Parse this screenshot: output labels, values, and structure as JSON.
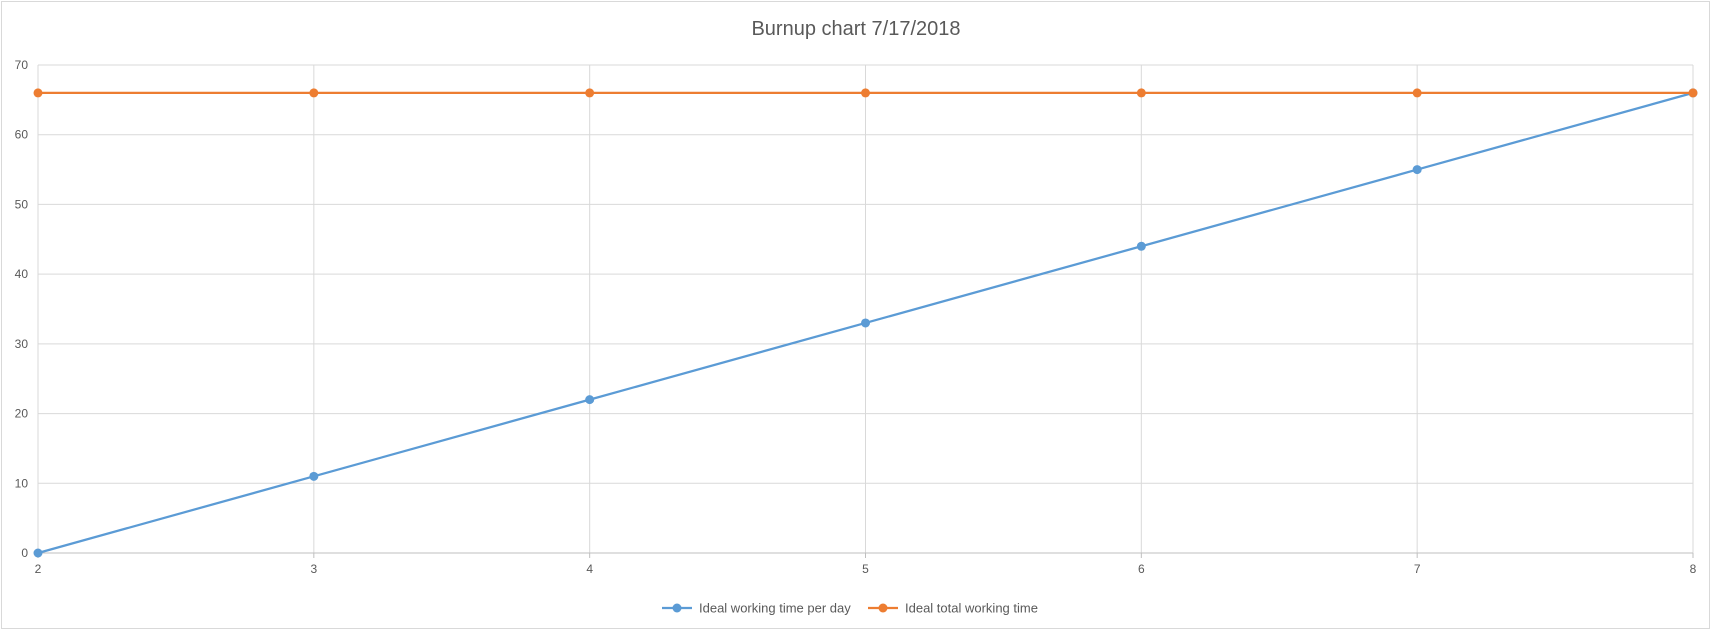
{
  "chart_data": {
    "type": "line",
    "title": "Burnup chart 7/17/2018",
    "xlabel": "",
    "ylabel": "",
    "x": [
      2,
      3,
      4,
      5,
      6,
      7,
      8
    ],
    "x_ticks": [
      "2",
      "3",
      "4",
      "5",
      "6",
      "7",
      "8"
    ],
    "xlim": [
      2,
      8
    ],
    "ylim": [
      0,
      70
    ],
    "y_ticks": [
      "0",
      "10",
      "20",
      "30",
      "40",
      "50",
      "60",
      "70"
    ],
    "y_tick_values": [
      0,
      10,
      20,
      30,
      40,
      50,
      60,
      70
    ],
    "grid": true,
    "legend_position": "bottom",
    "series": [
      {
        "name": "Ideal working time per day",
        "color": "#5b9bd5",
        "values": [
          0,
          11,
          22,
          33,
          44,
          55,
          66
        ]
      },
      {
        "name": "Ideal total working time",
        "color": "#ed7d31",
        "values": [
          66,
          66,
          66,
          66,
          66,
          66,
          66
        ]
      }
    ]
  }
}
